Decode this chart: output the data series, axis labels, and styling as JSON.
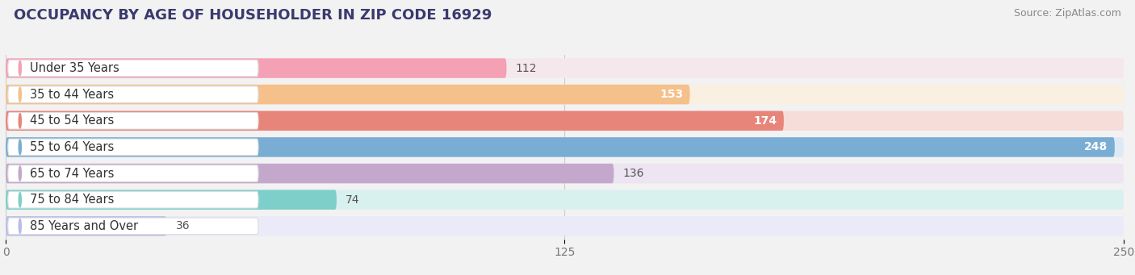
{
  "title": "OCCUPANCY BY AGE OF HOUSEHOLDER IN ZIP CODE 16929",
  "source": "Source: ZipAtlas.com",
  "categories": [
    "Under 35 Years",
    "35 to 44 Years",
    "45 to 54 Years",
    "55 to 64 Years",
    "65 to 74 Years",
    "75 to 84 Years",
    "85 Years and Over"
  ],
  "values": [
    112,
    153,
    174,
    248,
    136,
    74,
    36
  ],
  "bar_colors": [
    "#f4a0b5",
    "#f5c08a",
    "#e8857a",
    "#7aadd4",
    "#c4a8cc",
    "#7ecfca",
    "#bbbde8"
  ],
  "bar_bg_colors": [
    "#f5e8ec",
    "#faf0e2",
    "#f7ddd9",
    "#dde9f5",
    "#ede5f2",
    "#d8f0ee",
    "#eaeaf8"
  ],
  "value_inside": [
    false,
    true,
    true,
    true,
    false,
    false,
    false
  ],
  "xlim": [
    0,
    250
  ],
  "xticks": [
    0,
    125,
    250
  ],
  "title_fontsize": 13,
  "label_fontsize": 10.5,
  "value_fontsize": 10,
  "background_color": "#f2f2f2"
}
